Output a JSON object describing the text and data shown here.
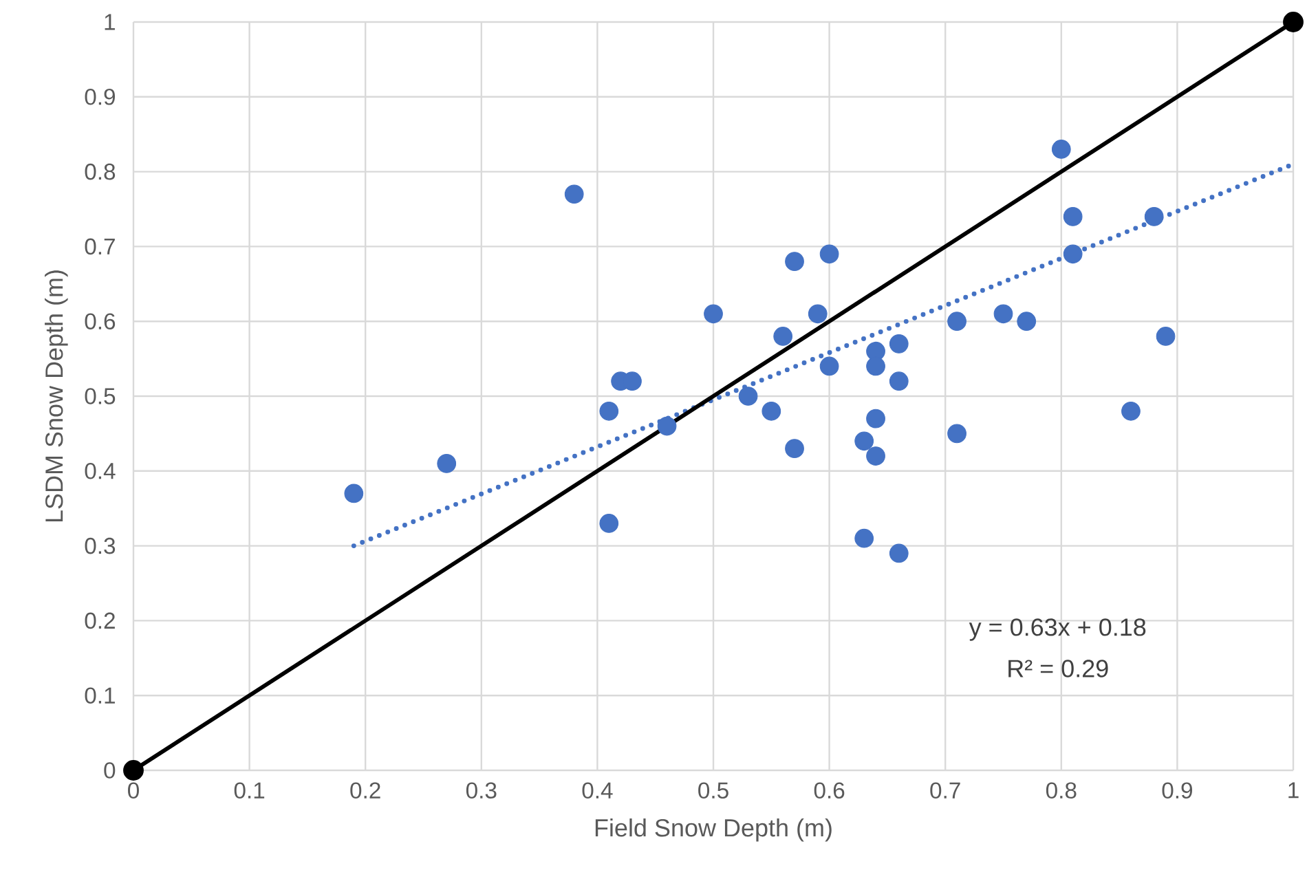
{
  "chart_data": {
    "type": "scatter",
    "xlabel": "Field Snow Depth (m)",
    "ylabel": "LSDM Snow Depth (m)",
    "xlim": [
      0,
      1
    ],
    "ylim": [
      0,
      1
    ],
    "xticks": [
      0,
      0.1,
      0.2,
      0.3,
      0.4,
      0.5,
      0.6,
      0.7,
      0.8,
      0.9,
      1
    ],
    "yticks": [
      0,
      0.1,
      0.2,
      0.3,
      0.4,
      0.5,
      0.6,
      0.7,
      0.8,
      0.9,
      1
    ],
    "grid": true,
    "series": [
      {
        "type": "scatter",
        "color": "#4472c4",
        "marker": "circle",
        "x": [
          0.19,
          0.27,
          0.38,
          0.41,
          0.41,
          0.42,
          0.43,
          0.46,
          0.5,
          0.53,
          0.55,
          0.56,
          0.57,
          0.57,
          0.6,
          0.59,
          0.6,
          0.64,
          0.64,
          0.66,
          0.66,
          0.71,
          0.75,
          0.77,
          0.89,
          0.64,
          0.63,
          0.64,
          0.71,
          0.86,
          0.63,
          0.66,
          0.8,
          0.81,
          0.88,
          0.81
        ],
        "values": [
          0.37,
          0.41,
          0.77,
          0.48,
          0.33,
          0.52,
          0.52,
          0.46,
          0.61,
          0.5,
          0.48,
          0.58,
          0.68,
          0.43,
          0.69,
          0.61,
          0.54,
          0.56,
          0.54,
          0.57,
          0.52,
          0.6,
          0.61,
          0.6,
          0.58,
          0.47,
          0.44,
          0.42,
          0.45,
          0.48,
          0.31,
          0.29,
          0.83,
          0.74,
          0.74,
          0.69
        ]
      },
      {
        "type": "line",
        "color": "#4472c4",
        "marker": "none",
        "line_style": "dotted",
        "x": [
          0.19,
          1
        ],
        "values": [
          0.3,
          0.81
        ]
      },
      {
        "type": "line",
        "color": "#000000",
        "marker": "circle",
        "line_style": "solid",
        "x": [
          0,
          1
        ],
        "values": [
          0,
          1
        ]
      }
    ],
    "annotations": [
      "y = 0.63x + 0.18",
      "R² = 0.29"
    ]
  }
}
